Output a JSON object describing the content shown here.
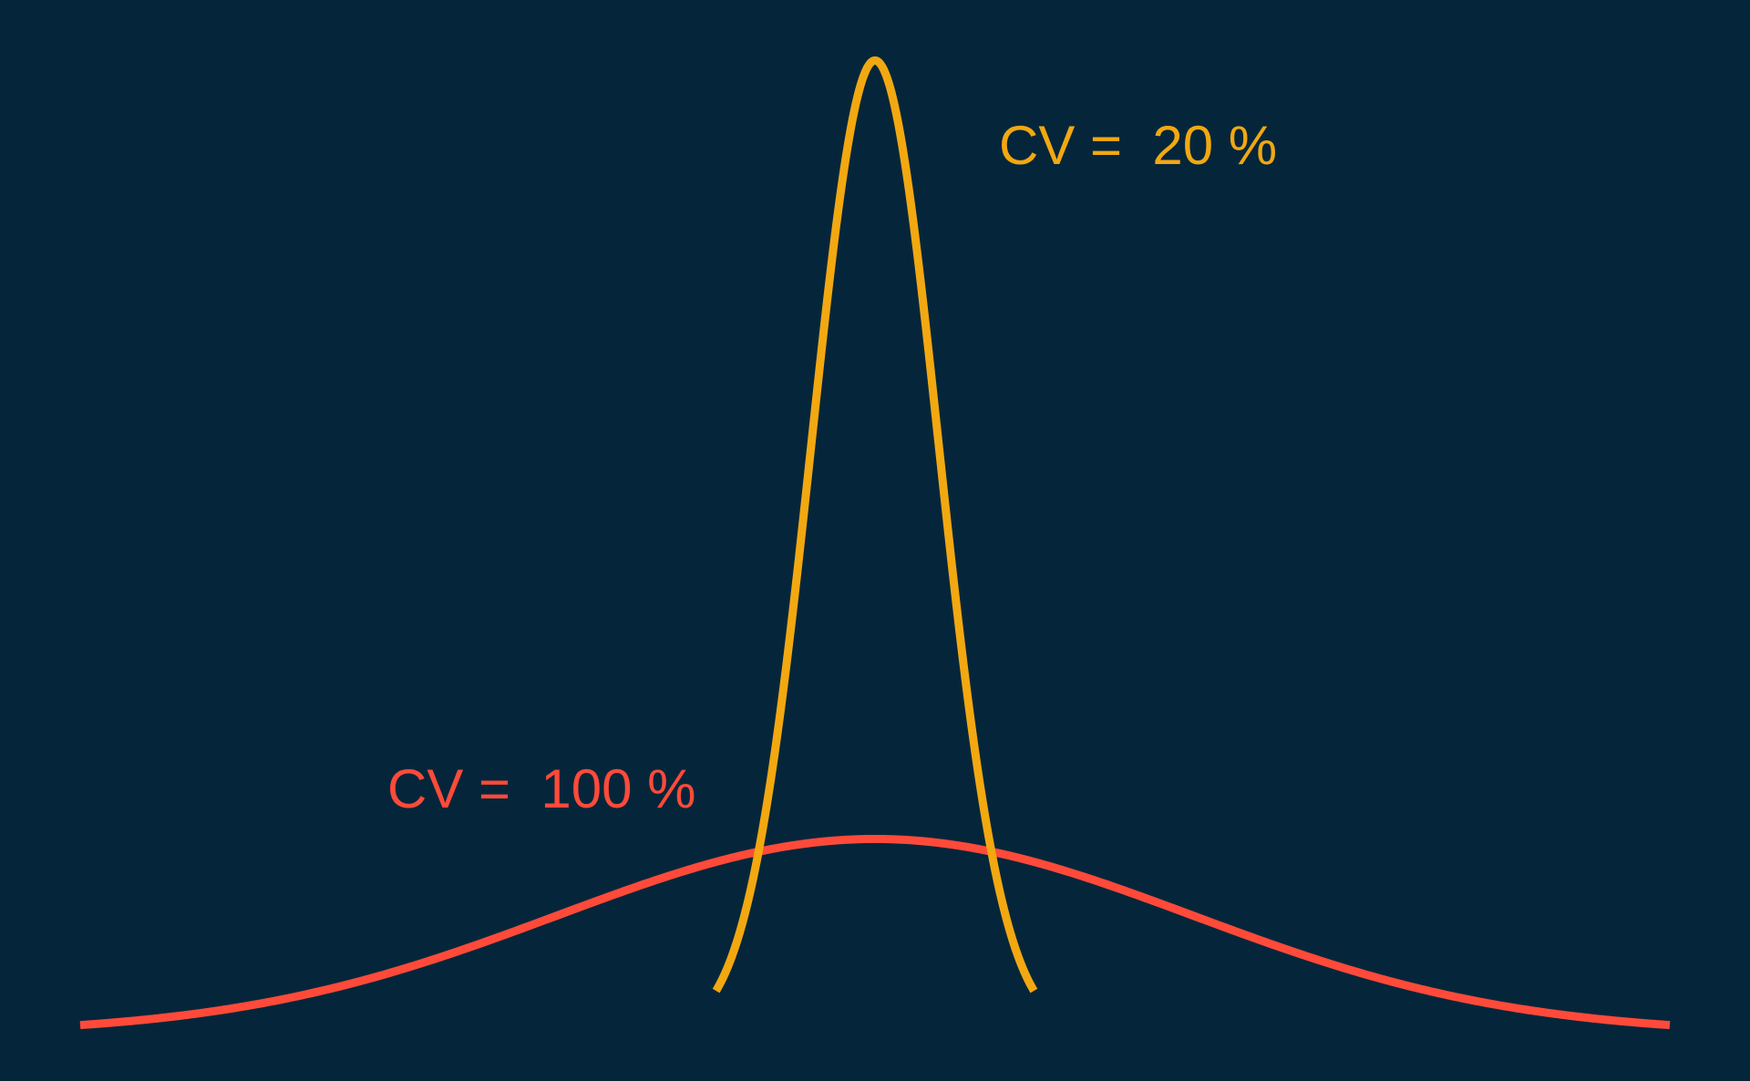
{
  "background_color": "#05263a",
  "chart_data": {
    "type": "line",
    "title": "",
    "xlabel": "",
    "ylabel": "",
    "grid": false,
    "legend": "none",
    "distribution": "normal",
    "mean": 1,
    "x_range": [
      -1.5,
      3.5
    ],
    "y_range": [
      0,
      2.1
    ],
    "series": [
      {
        "label": "CV =  20 %",
        "cv": 0.2,
        "sd": 0.2,
        "x_start": 0.5,
        "x_end": 1.5,
        "color": "#f2a811"
      },
      {
        "label": "CV =  100 %",
        "cv": 1.0,
        "sd": 1.0,
        "x_start": -1.5,
        "x_end": 3.5,
        "color": "#ff4a3a"
      }
    ]
  }
}
